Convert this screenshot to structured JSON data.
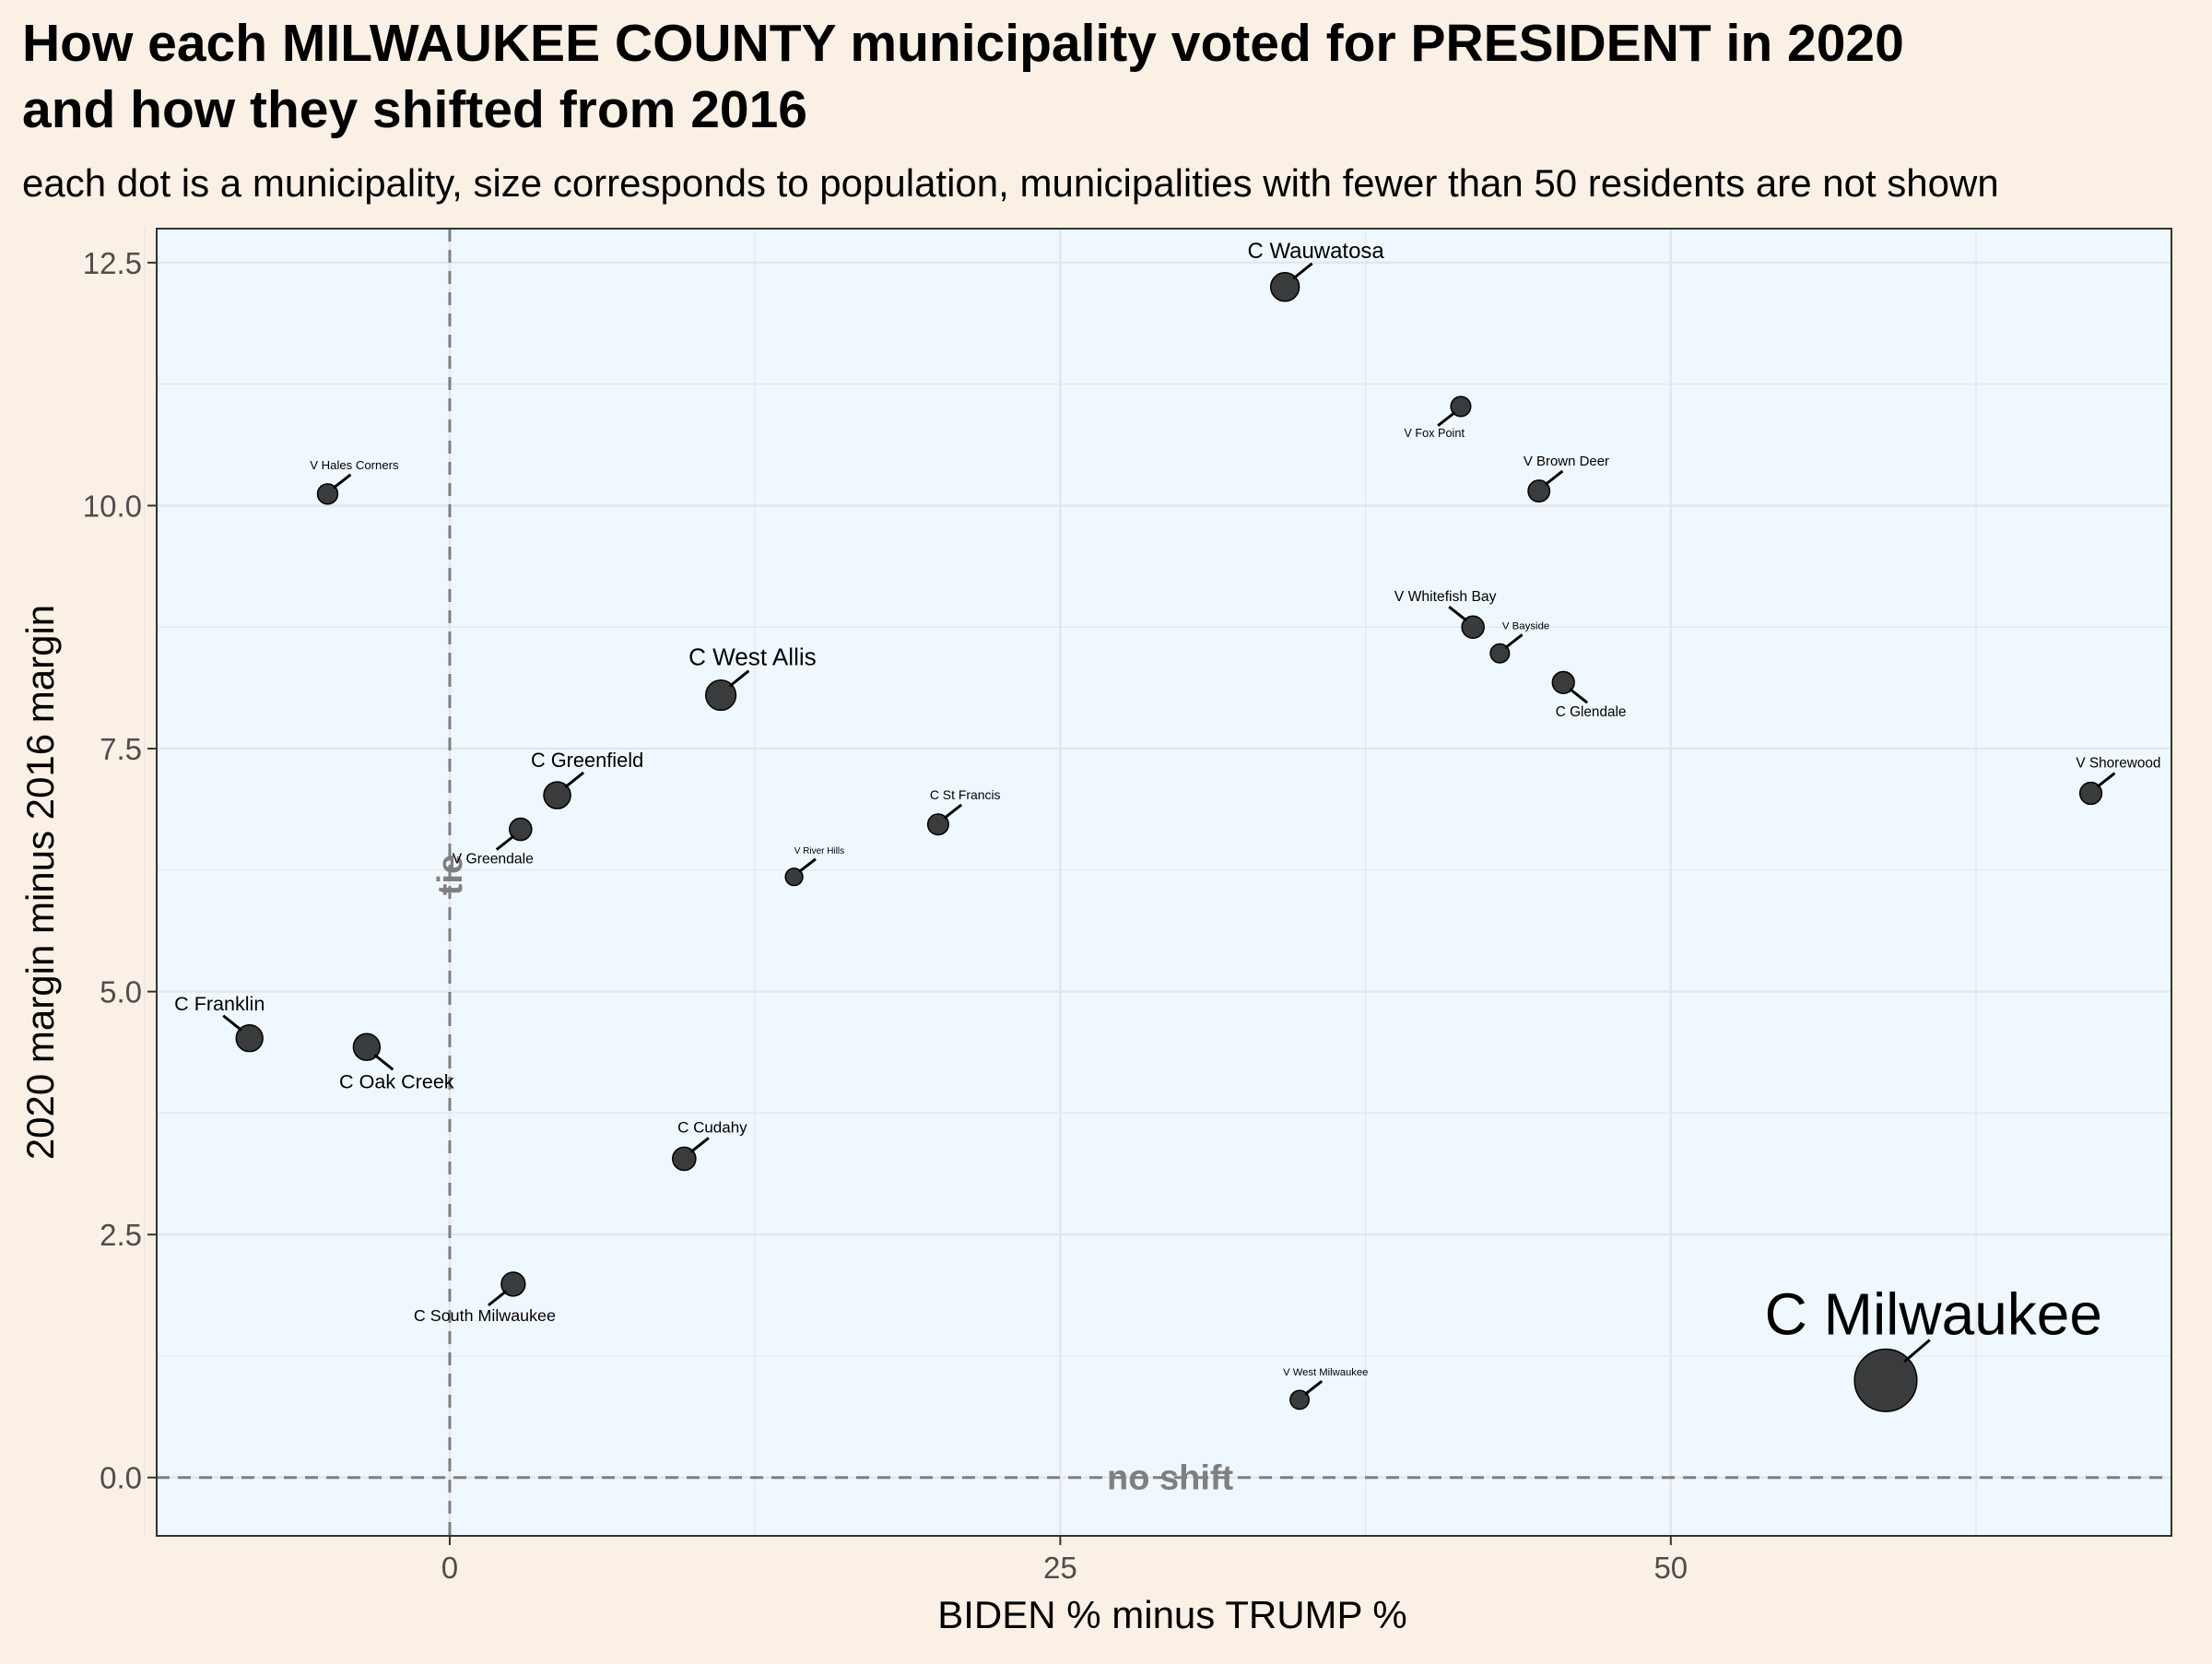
{
  "chart_data": {
    "type": "scatter",
    "title_line1": "How each MILWAUKEE COUNTY municipality voted for PRESIDENT in 2020",
    "title_line2": "and how they shifted from 2016",
    "subtitle": "each dot is a municipality, size corresponds to population, municipalities with fewer than 50 residents are not shown",
    "xlabel": "BIDEN % minus TRUMP %",
    "ylabel": "2020 margin minus 2016 margin",
    "xlim": [
      -12,
      70.5
    ],
    "ylim": [
      -0.6,
      12.85
    ],
    "x_ticks": [
      0,
      25,
      50
    ],
    "x_tick_labels": [
      "0",
      "25",
      "50"
    ],
    "x_minor_ticks": [
      -12.5,
      12.5,
      37.5,
      62.5
    ],
    "y_ticks": [
      0,
      2.5,
      5,
      7.5,
      10,
      12.5
    ],
    "y_tick_labels": [
      "0.0",
      "2.5",
      "5.0",
      "7.5",
      "10.0",
      "12.5"
    ],
    "y_minor_ticks": [
      1.25,
      3.75,
      6.25,
      8.75,
      11.25
    ],
    "vline_label": "tie",
    "hline_label": "no shift",
    "colors": {
      "page_background": "#faf0e6",
      "panel_background": "#f0f8ff",
      "grid": "#e6e6e6",
      "point": "#1a1a1a",
      "reference_line": "#7f7f7f"
    },
    "points": [
      {
        "label": "C Milwaukee",
        "x": 58.8,
        "y": 1.0,
        "population": 577000
      },
      {
        "label": "C Wauwatosa",
        "x": 34.2,
        "y": 12.25,
        "population": 48000
      },
      {
        "label": "C West Allis",
        "x": 11.1,
        "y": 8.05,
        "population": 60000
      },
      {
        "label": "C Greenfield",
        "x": 4.4,
        "y": 7.02,
        "population": 37000
      },
      {
        "label": "V Greendale",
        "x": 2.9,
        "y": 6.67,
        "population": 14000
      },
      {
        "label": "C Franklin",
        "x": -8.2,
        "y": 4.52,
        "population": 36000
      },
      {
        "label": "C Oak Creek",
        "x": -3.4,
        "y": 4.43,
        "population": 36000
      },
      {
        "label": "C Cudahy",
        "x": 9.6,
        "y": 3.28,
        "population": 18000
      },
      {
        "label": "C South Milwaukee",
        "x": 2.6,
        "y": 1.99,
        "population": 21000
      },
      {
        "label": "V Hales Corners",
        "x": -5.0,
        "y": 10.12,
        "population": 7600
      },
      {
        "label": "V River Hills",
        "x": 14.1,
        "y": 6.18,
        "population": 1600
      },
      {
        "label": "C St Francis",
        "x": 20.0,
        "y": 6.72,
        "population": 9400
      },
      {
        "label": "V West Milwaukee",
        "x": 34.8,
        "y": 0.8,
        "population": 4100
      },
      {
        "label": "V Fox Point",
        "x": 41.4,
        "y": 11.02,
        "population": 6700
      },
      {
        "label": "V Brown Deer",
        "x": 44.6,
        "y": 10.15,
        "population": 12000
      },
      {
        "label": "V Whitefish Bay",
        "x": 41.9,
        "y": 8.75,
        "population": 14000
      },
      {
        "label": "V Bayside",
        "x": 43.0,
        "y": 8.48,
        "population": 4400
      },
      {
        "label": "C Glendale",
        "x": 45.6,
        "y": 8.18,
        "population": 13000
      },
      {
        "label": "V Shorewood",
        "x": 67.2,
        "y": 7.04,
        "population": 13000
      }
    ]
  }
}
